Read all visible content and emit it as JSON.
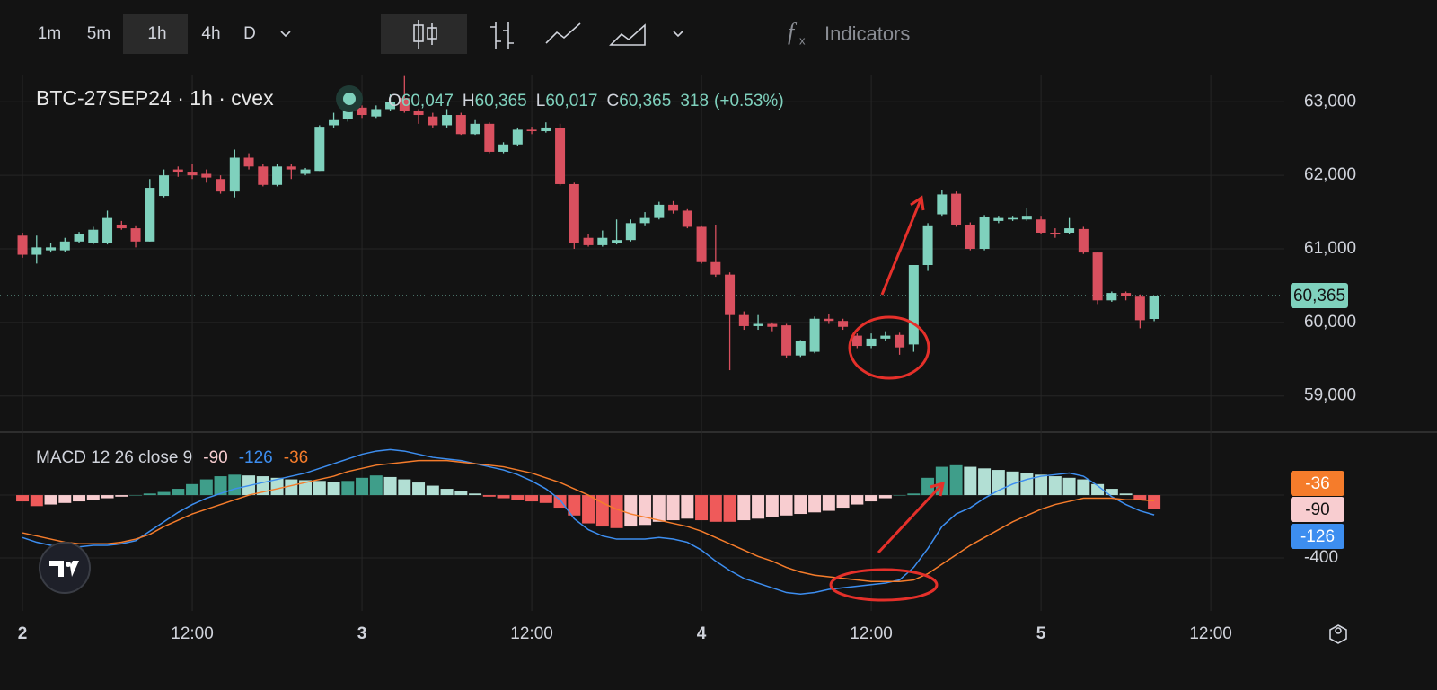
{
  "toolbar": {
    "timeframes": [
      "1m",
      "5m",
      "1h",
      "4h",
      "D"
    ],
    "active": 2,
    "indicators": "Indicators"
  },
  "chart_data": [
    {
      "type": "candlestick",
      "header": {
        "symbol": "BTC-27SEP24 · 1h · cvex",
        "ohlc": [
          {
            "key": "O",
            "label": "60,047"
          },
          {
            "key": "H",
            "label": "60,365"
          },
          {
            "key": "L",
            "label": "60,017"
          },
          {
            "key": "C",
            "label": "60,365"
          }
        ],
        "change": "318",
        "change_pct": "(+0.53%)"
      },
      "open": [
        61180,
        60920,
        60980,
        60980,
        61100,
        61080,
        61080,
        61330,
        61280,
        61100,
        61720,
        62080,
        62050,
        62020,
        61950,
        61780,
        62240,
        62120,
        61870,
        62120,
        62020,
        62060,
        62680,
        62760,
        62920,
        62800,
        62900,
        63050,
        62870,
        62800,
        62680,
        62820,
        62560,
        62700,
        62320,
        62420,
        62620,
        62600,
        62640,
        61880,
        61150,
        61050,
        61080,
        61120,
        61350,
        61420,
        61600,
        61520,
        61300,
        60820,
        60650,
        60100,
        59950,
        59980,
        59960,
        59550,
        59600,
        60050,
        60020,
        59820,
        59680,
        59780,
        59830,
        59700,
        60780,
        61470,
        61750,
        61330,
        61000,
        61380,
        61400,
        61400,
        61400,
        61220,
        61220,
        61270,
        60950,
        60300,
        60400,
        60350,
        60047
      ],
      "high": [
        61220,
        61180,
        61080,
        61150,
        61230,
        61300,
        61520,
        61380,
        61320,
        61950,
        62080,
        62120,
        62150,
        62080,
        62000,
        62350,
        62300,
        62150,
        62150,
        62150,
        62100,
        62680,
        62850,
        63000,
        62950,
        62950,
        63100,
        63350,
        62900,
        62850,
        62900,
        62850,
        62750,
        62720,
        62450,
        62650,
        62660,
        62720,
        62700,
        61900,
        61200,
        61250,
        61400,
        61400,
        61500,
        61640,
        61650,
        61540,
        61320,
        61330,
        60680,
        60150,
        60100,
        60000,
        59980,
        59760,
        60080,
        60120,
        60050,
        59850,
        59850,
        59880,
        59860,
        60780,
        61350,
        61800,
        61780,
        61360,
        61460,
        61450,
        61450,
        61560,
        61450,
        61280,
        61420,
        61300,
        60960,
        60420,
        60420,
        60380,
        60365
      ],
      "low": [
        60880,
        60800,
        60950,
        60960,
        61080,
        61060,
        61060,
        61260,
        61020,
        61100,
        61700,
        61980,
        61950,
        61900,
        61750,
        61700,
        62080,
        61850,
        61850,
        61950,
        62000,
        62060,
        62650,
        62730,
        62780,
        62780,
        62880,
        62850,
        62700,
        62650,
        62650,
        62550,
        62550,
        62300,
        62300,
        62400,
        62560,
        62580,
        61860,
        61000,
        61030,
        61030,
        61060,
        61100,
        61320,
        61400,
        61480,
        61280,
        60800,
        60620,
        59350,
        59900,
        59900,
        59880,
        59520,
        59530,
        59580,
        59980,
        59900,
        59650,
        59650,
        59750,
        59560,
        59600,
        60700,
        61450,
        61300,
        60980,
        60980,
        61350,
        61380,
        61380,
        61200,
        61150,
        61200,
        60930,
        60250,
        60280,
        60300,
        59920,
        60017
      ],
      "close": [
        60920,
        61020,
        61020,
        61100,
        61200,
        61260,
        61420,
        61280,
        61100,
        61830,
        62000,
        62050,
        62000,
        61970,
        61780,
        62240,
        62120,
        61870,
        62120,
        62080,
        62080,
        62660,
        62750,
        62920,
        62820,
        62900,
        63000,
        62870,
        62820,
        62680,
        62820,
        62560,
        62700,
        62320,
        62420,
        62620,
        62600,
        62650,
        61880,
        61080,
        61050,
        61150,
        61120,
        61350,
        61420,
        61600,
        61520,
        61300,
        60820,
        60650,
        60100,
        59950,
        59980,
        59940,
        59550,
        59750,
        60050,
        60020,
        59940,
        59680,
        59780,
        59820,
        59660,
        60780,
        61320,
        61740,
        61330,
        61000,
        61440,
        61420,
        61420,
        61450,
        61220,
        61200,
        61280,
        60950,
        60300,
        60400,
        60360,
        60030,
        60365
      ],
      "up_color": "#7fd1bd",
      "down_color": "#d9505f",
      "last_price": {
        "value": 60365,
        "label": "60,365"
      },
      "xlim": [
        -1.59,
        89.2
      ],
      "xticks": [
        {
          "value": 0,
          "label": "2"
        },
        {
          "value": 12,
          "label": "12:00"
        },
        {
          "value": 24,
          "label": "3"
        },
        {
          "value": 36,
          "label": "12:00"
        },
        {
          "value": 48,
          "label": "4"
        },
        {
          "value": 60,
          "label": "12:00"
        },
        {
          "value": 72,
          "label": "5"
        },
        {
          "value": 84,
          "label": "12:00"
        }
      ],
      "ylim": [
        58520,
        63370
      ],
      "yticks": [
        {
          "value": 59000,
          "label": "59,000"
        },
        {
          "value": 60000,
          "label": "60,000"
        },
        {
          "value": 61000,
          "label": "61,000"
        },
        {
          "value": 62000,
          "label": "62,000"
        },
        {
          "value": 63000,
          "label": "63,000"
        }
      ],
      "grid": true
    },
    {
      "type": "macd",
      "title": "MACD 12 26 close 9",
      "ylim": [
        -737,
        389
      ],
      "yticks": [
        -400
      ],
      "series": [
        {
          "kind": "histogram",
          "color": "#f8cdd0",
          "colors": {
            "up_strong": "#3f9e8a",
            "up_weak": "#b2dfd4",
            "down_strong": "#ef5a5a",
            "down_weak": "#f8cdd0"
          },
          "values": [
            -40,
            -70,
            -60,
            -50,
            -40,
            -30,
            -20,
            -10,
            0,
            10,
            20,
            40,
            70,
            100,
            120,
            130,
            125,
            120,
            110,
            100,
            95,
            90,
            85,
            90,
            110,
            125,
            115,
            100,
            80,
            60,
            40,
            25,
            10,
            -10,
            -20,
            -30,
            -40,
            -50,
            -80,
            -130,
            -180,
            -200,
            -210,
            -200,
            -190,
            -170,
            -160,
            -150,
            -160,
            -170,
            -170,
            -160,
            -150,
            -140,
            -130,
            -120,
            -110,
            -100,
            -80,
            -60,
            -40,
            -20,
            0,
            10,
            110,
            180,
            190,
            180,
            170,
            160,
            150,
            140,
            130,
            120,
            110,
            100,
            70,
            40,
            10,
            -30,
            -90
          ]
        },
        {
          "kind": "line",
          "color": "#3d8ef0",
          "values": [
            -270,
            -300,
            -320,
            -330,
            -330,
            -320,
            -320,
            -310,
            -290,
            -230,
            -170,
            -110,
            -60,
            -20,
            10,
            40,
            60,
            80,
            100,
            120,
            140,
            170,
            200,
            230,
            260,
            280,
            290,
            280,
            260,
            240,
            230,
            220,
            200,
            180,
            160,
            130,
            90,
            40,
            -30,
            -150,
            -220,
            -260,
            -280,
            -280,
            -280,
            -270,
            -280,
            -300,
            -350,
            -420,
            -480,
            -530,
            -560,
            -590,
            -620,
            -630,
            -620,
            -600,
            -590,
            -580,
            -570,
            -560,
            -540,
            -460,
            -340,
            -200,
            -120,
            -80,
            -20,
            30,
            70,
            100,
            120,
            130,
            140,
            120,
            60,
            -10,
            -60,
            -100,
            -126
          ]
        },
        {
          "kind": "line",
          "color": "#f57c2b",
          "values": [
            -240,
            -260,
            -280,
            -300,
            -310,
            -310,
            -310,
            -300,
            -280,
            -250,
            -200,
            -160,
            -120,
            -90,
            -60,
            -30,
            0,
            20,
            40,
            60,
            80,
            100,
            120,
            150,
            170,
            190,
            200,
            210,
            220,
            220,
            220,
            210,
            200,
            190,
            180,
            160,
            140,
            110,
            80,
            40,
            0,
            -50,
            -90,
            -120,
            -140,
            -160,
            -180,
            -200,
            -230,
            -270,
            -310,
            -350,
            -390,
            -420,
            -460,
            -490,
            -510,
            -520,
            -530,
            -540,
            -550,
            -550,
            -550,
            -540,
            -500,
            -440,
            -380,
            -320,
            -270,
            -220,
            -170,
            -130,
            -90,
            -60,
            -40,
            -20,
            -20,
            -20,
            -30,
            -30,
            -36
          ]
        }
      ]
    }
  ]
}
